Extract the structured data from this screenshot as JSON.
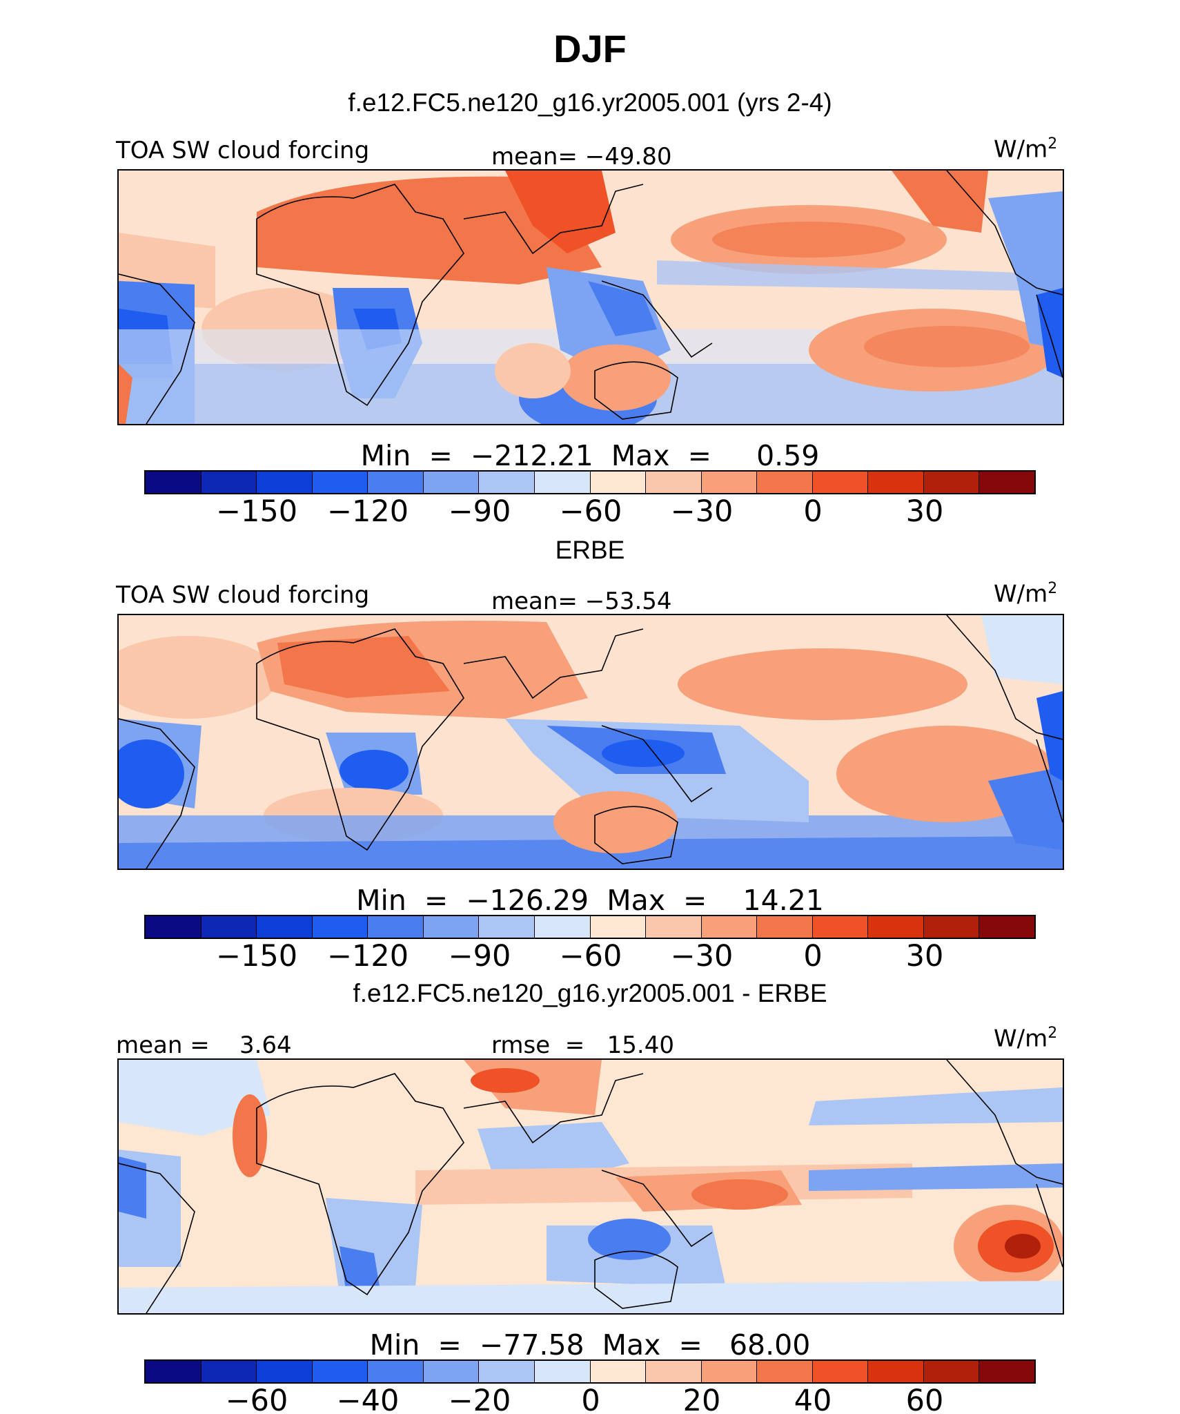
{
  "title": "DJF",
  "colorbar_colors": [
    "#0a0a84",
    "#0c28b4",
    "#0d3fd8",
    "#1f5cf0",
    "#4a7df0",
    "#7da4f2",
    "#abc5f4",
    "#d8e6fa",
    "#fde6d2",
    "#fbc7aa",
    "#f7a07a",
    "#f2764a",
    "#ee5226",
    "#d8320e",
    "#b0200a",
    "#86080a"
  ],
  "panels": [
    {
      "subtitle": "f.e12.FC5.ne120_g16.yr2005.001 (yrs 2-4)",
      "left_label": "TOA SW cloud forcing",
      "center_label": "mean= −49.80",
      "units_base": "W/m",
      "units_sup": "2",
      "minmax": "Min  =  −212.21  Max  =     0.59",
      "ticks": [
        "−150",
        "−120",
        "−90",
        "−60",
        "−30",
        "0",
        "30"
      ]
    },
    {
      "subtitle": "ERBE",
      "left_label": "TOA SW cloud forcing",
      "center_label": "mean= −53.54",
      "units_base": "W/m",
      "units_sup": "2",
      "minmax": "Min  =  −126.29  Max  =    14.21",
      "ticks": [
        "−150",
        "−120",
        "−90",
        "−60",
        "−30",
        "0",
        "30"
      ]
    },
    {
      "subtitle": "f.e12.FC5.ne120_g16.yr2005.001 - ERBE",
      "left_label": "mean =    3.64",
      "center_label": "rmse  =   15.40",
      "units_base": "W/m",
      "units_sup": "2",
      "minmax": "Min  =  −77.58  Max  =   68.00",
      "ticks": [
        "−60",
        "−40",
        "−20",
        "0",
        "20",
        "40",
        "60"
      ]
    }
  ]
}
